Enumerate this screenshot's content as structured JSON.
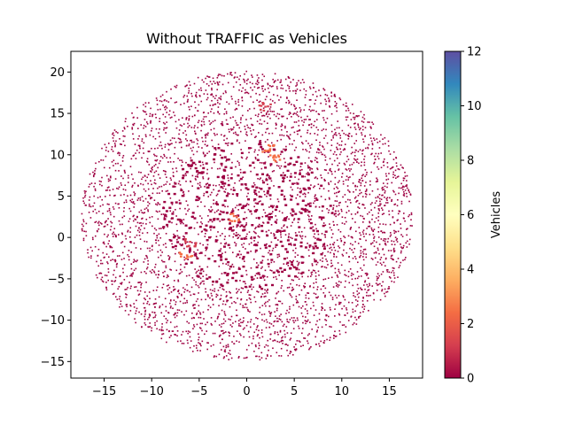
{
  "chart_data": {
    "type": "scatter",
    "title": "Without TRAFFIC as Vehicles",
    "xlabel": "",
    "ylabel": "",
    "xlim": [
      -18.5,
      18.5
    ],
    "ylim": [
      -17,
      22.5
    ],
    "x_ticks": [
      -15,
      -10,
      -5,
      0,
      5,
      10,
      15
    ],
    "y_ticks": [
      -15,
      -10,
      -5,
      0,
      5,
      10,
      15,
      20
    ],
    "grid": false,
    "colorbar": {
      "label": "Vehicles",
      "range": [
        0,
        12
      ],
      "ticks": [
        0,
        2,
        4,
        6,
        8,
        10,
        12
      ],
      "colormap": "Spectral",
      "colors": [
        "#9e0142",
        "#d53e4f",
        "#f46d43",
        "#fdae61",
        "#fee08b",
        "#ffffbf",
        "#e6f598",
        "#abdda4",
        "#66c2a5",
        "#3288bd",
        "#5e4fa2"
      ]
    },
    "point_color": "#9e0142",
    "distribution": {
      "shape": "disk",
      "center": [
        0,
        2.7
      ],
      "radius": 17.5,
      "count": 4200,
      "dense_core_radius": 9
    },
    "hotspots": [
      {
        "x": 2.2,
        "y": 10.8,
        "value": 2
      },
      {
        "x": 3.0,
        "y": 9.6,
        "value": 2
      },
      {
        "x": 1.9,
        "y": 15.9,
        "value": 1
      },
      {
        "x": -1.5,
        "y": 2.5,
        "value": 2
      },
      {
        "x": -6.5,
        "y": -2.0,
        "value": 2
      },
      {
        "x": -6.0,
        "y": -0.5,
        "value": 1
      }
    ]
  }
}
